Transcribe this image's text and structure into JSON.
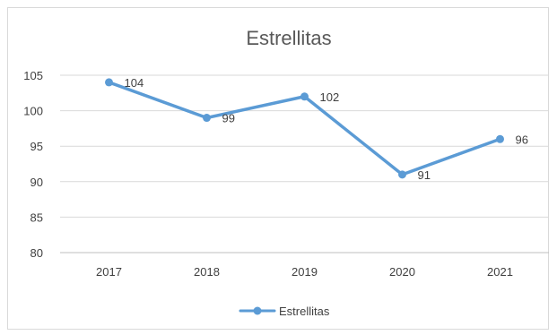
{
  "chart_data": {
    "type": "line",
    "title": "Estrellitas",
    "xlabel": "",
    "ylabel": "",
    "categories": [
      "2017",
      "2018",
      "2019",
      "2020",
      "2021"
    ],
    "series": [
      {
        "name": "Estrellitas",
        "values": [
          104,
          99,
          102,
          91,
          96
        ],
        "color": "#5b9bd5"
      }
    ],
    "ylim": [
      80,
      105
    ],
    "yticks": [
      80,
      85,
      90,
      95,
      100,
      105
    ],
    "grid": true,
    "data_labels": true,
    "legend_position": "bottom"
  }
}
